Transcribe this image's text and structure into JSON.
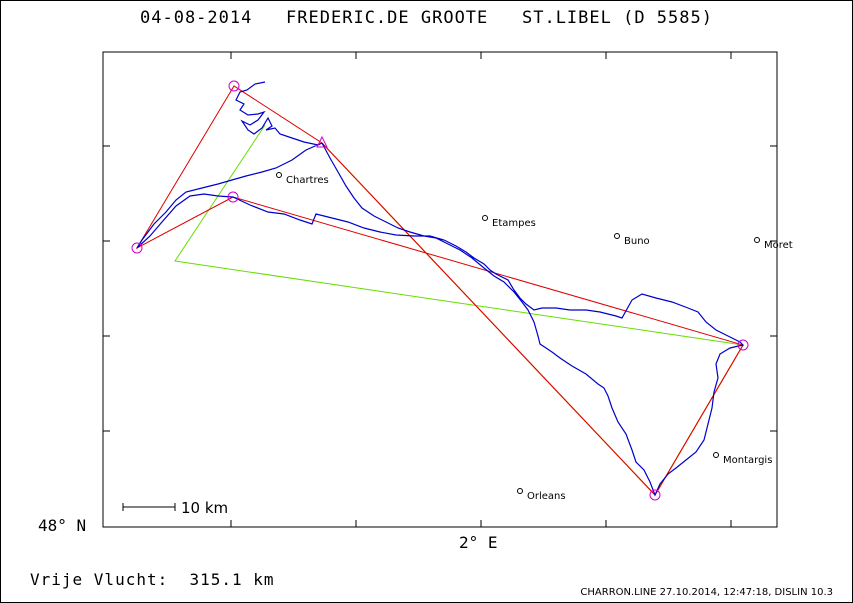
{
  "title": "04-08-2014   FREDERIC.DE GROOTE   ST.LIBEL (D 5585)",
  "axes": {
    "lat_label": "48° N",
    "lon_label": "2° E"
  },
  "scale_bar": {
    "label": "10 km"
  },
  "towns": [
    {
      "name": "Chartres"
    },
    {
      "name": "Etampes"
    },
    {
      "name": "Buno"
    },
    {
      "name": "Moret"
    },
    {
      "name": "Montargis"
    },
    {
      "name": "Orleans"
    }
  ],
  "footer": {
    "distance": "Vrije Vlucht:  315.1 km",
    "credit": "CHARRON.LINE 27.10.2014, 12:47:18, DISLIN 10.3"
  },
  "colors": {
    "track": "#0000cc",
    "task": "#e00000",
    "triangle": "#66dd00",
    "leg": "#cc7700",
    "turnpoint": "#cc00cc"
  }
}
